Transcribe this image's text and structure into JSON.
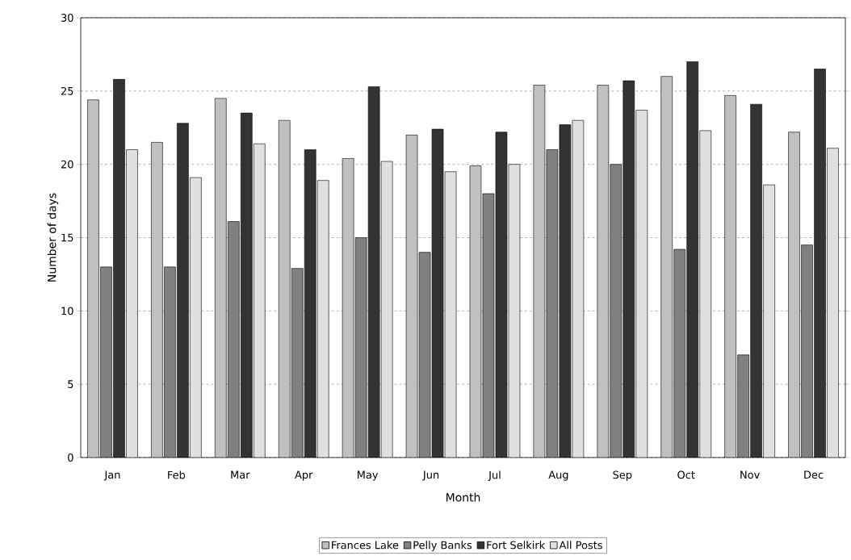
{
  "chart_data": {
    "type": "bar",
    "xlabel": "Month",
    "ylabel": "Number of days",
    "categories": [
      "Jan",
      "Feb",
      "Mar",
      "Apr",
      "May",
      "Jun",
      "Jul",
      "Aug",
      "Sep",
      "Oct",
      "Nov",
      "Dec"
    ],
    "series": [
      {
        "name": "Frances Lake",
        "color": "#c0c0c0",
        "values": [
          24.4,
          21.5,
          24.5,
          23.0,
          20.4,
          22.0,
          19.9,
          25.4,
          25.4,
          26.0,
          24.7,
          22.2
        ]
      },
      {
        "name": "Pelly Banks",
        "color": "#808080",
        "values": [
          13.0,
          13.0,
          16.1,
          12.9,
          15.0,
          14.0,
          18.0,
          21.0,
          20.0,
          14.2,
          7.0,
          14.5
        ]
      },
      {
        "name": "Fort Selkirk",
        "color": "#333333",
        "values": [
          25.8,
          22.8,
          23.5,
          21.0,
          25.3,
          22.4,
          22.2,
          22.7,
          25.7,
          27.0,
          24.1,
          26.5
        ]
      },
      {
        "name": "All Posts",
        "color": "#e0e0e0",
        "values": [
          21.0,
          19.1,
          21.4,
          18.9,
          20.2,
          19.5,
          20.0,
          23.0,
          23.7,
          22.3,
          18.6,
          21.1
        ]
      }
    ],
    "ylim": [
      0,
      30
    ],
    "yticks": [
      0,
      5,
      10,
      15,
      20,
      25,
      30
    ],
    "grid": "y",
    "legend": "bottom"
  }
}
